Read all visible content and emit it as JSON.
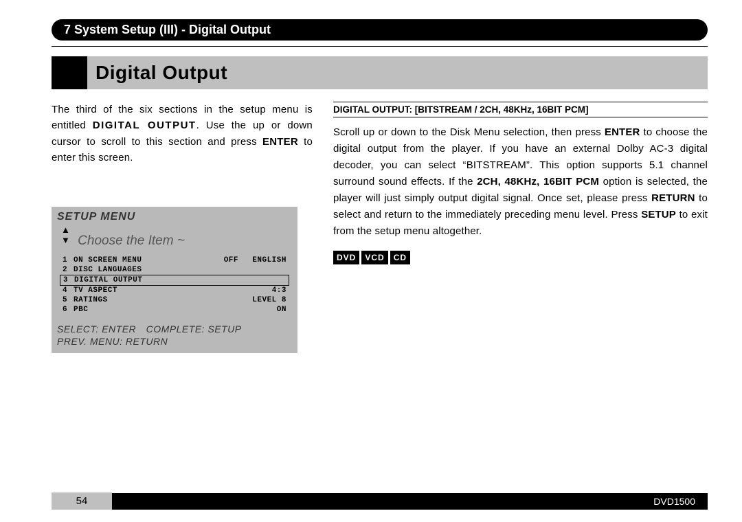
{
  "colors": {
    "black": "#000000",
    "gray_bg": "#bfbfbf",
    "menu_gray": "#b9b9b9"
  },
  "header_pill": "7 System Setup (III) - Digital Output",
  "page_title": "Digital Output",
  "intro": {
    "pre": "The third of the six sections in the setup menu is entitled ",
    "bold1": "DIGITAL OUTPUT",
    "mid": ". Use the up or down cursor to scroll to this section and press ",
    "bold2": "ENTER",
    "post": " to enter this screen."
  },
  "menu": {
    "title": "SETUP MENU",
    "subtitle": "Choose the Item ~",
    "items": [
      {
        "num": "1",
        "name": "ON SCREEN MENU",
        "v1": "OFF",
        "v2": "ENGLISH",
        "selected": false
      },
      {
        "num": "2",
        "name": "DISC LANGUAGES",
        "v1": "",
        "v2": "",
        "selected": false
      },
      {
        "num": "3",
        "name": "DIGITAL OUTPUT",
        "v1": "",
        "v2": "",
        "selected": true
      },
      {
        "num": "4",
        "name": "TV ASPECT",
        "v1": "",
        "v2": "4:3",
        "selected": false
      },
      {
        "num": "5",
        "name": "RATINGS",
        "v1": "",
        "v2": "LEVEL 8",
        "selected": false
      },
      {
        "num": "6",
        "name": "PBC",
        "v1": "",
        "v2": "ON",
        "selected": false
      }
    ],
    "footer_line1": "SELECT: ENTER COMPLETE: SETUP",
    "footer_line2": "PREV. MENU: RETURN"
  },
  "right": {
    "heading": "DIGITAL OUTPUT: [BITSTREAM / 2CH, 48KHz, 16BIT PCM]",
    "p1a": "Scroll up or down to the Disk Menu selection, then press ",
    "b1": "ENTER",
    "p1b": " to choose the digital output from the player. If you have an external Dolby AC-3 digital decoder, you can select “BITSTREAM”. This option supports 5.1 channel surround sound effects. If the ",
    "b2": "2CH, 48KHz, 16BIT PCM",
    "p1c": " option is selected, the player will just simply output digital signal. Once set, please press ",
    "b3": "RETURN",
    "p1d": " to select and return to the immediately preceding menu level. Press ",
    "b4": "SETUP",
    "p1e": " to exit from the setup menu altogether."
  },
  "badges": [
    "DVD",
    "VCD",
    "CD"
  ],
  "footer": {
    "page_num": "54",
    "model": "DVD1500"
  }
}
